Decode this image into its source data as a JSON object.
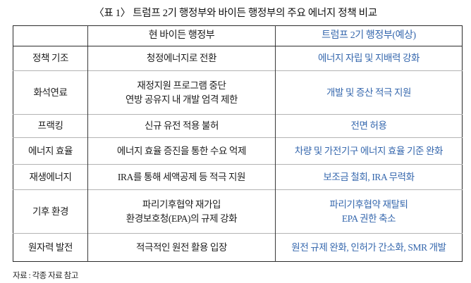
{
  "title": "〈표 1〉 트럼프 2기 행정부와 바이든 행정부의 주요 에너지 정책 비교",
  "colors": {
    "accent_blue": "#3567ad",
    "text_black": "#1b1b1b",
    "row_divider_gray": "#b3b3b3",
    "table_border_dark": "#2b2b2b"
  },
  "table": {
    "headers": [
      "",
      "현 바이든 행정부",
      "트럼프 2기 행정부(예상)"
    ],
    "rows": [
      {
        "label": "정책 기조",
        "biden": [
          "청정에너지로 전환"
        ],
        "trump": [
          "에너지 자립 및 지배력 강화"
        ]
      },
      {
        "label": "화석연료",
        "biden": [
          "재정지원 프로그램 중단",
          "연방 공유지 내 개발 엄격 제한"
        ],
        "trump": [
          "개발 및 증산 적극 지원"
        ]
      },
      {
        "label": "프랙킹",
        "biden": [
          "신규 유전 적용 불허"
        ],
        "trump": [
          "전면 허용"
        ]
      },
      {
        "label": "에너지 효율",
        "biden": [
          "에너지 효율 증진을 통한 수요 억제"
        ],
        "trump": [
          "차량 및 가전기구 에너지 효율 기준 완화"
        ]
      },
      {
        "label": "재생에너지",
        "biden": [
          "IRA를 통해 세액공제 등 적극 지원"
        ],
        "trump": [
          "보조금 철회, IRA 무력화"
        ]
      },
      {
        "label": "기후 환경",
        "biden": [
          "파리기후협약 재가입",
          "환경보호청(EPA)의 규제 강화"
        ],
        "trump": [
          "파리기후협약 재탈퇴",
          "EPA 권한 축소"
        ]
      },
      {
        "label": "원자력 발전",
        "biden": [
          "적극적인 원전 활용 입장"
        ],
        "trump": [
          "원전 규제 완화, 인허가 간소화, SMR 개발"
        ]
      }
    ]
  },
  "footer": {
    "source_note": "자료 : 각종 자료 참고"
  }
}
